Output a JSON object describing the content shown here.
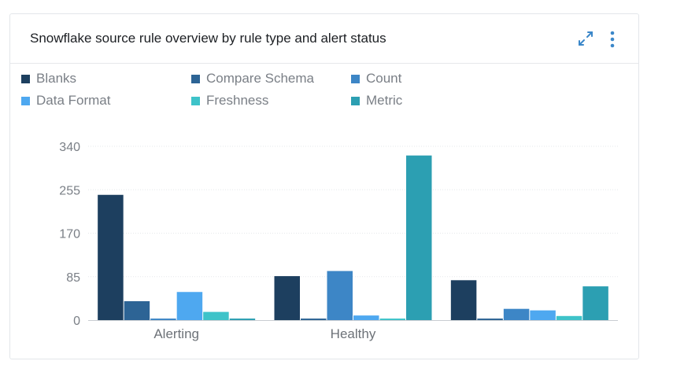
{
  "card": {
    "title": "Snowflake source rule overview by rule type and alert status"
  },
  "icons": {
    "expand": "expand-icon",
    "more": "more-vertical-icon",
    "accent": "#3b87c9"
  },
  "chart_data": {
    "type": "bar",
    "title": "Snowflake source rule overview by rule type and alert status",
    "xlabel": "",
    "ylabel": "",
    "categories": [
      "Alerting",
      "Healthy",
      ""
    ],
    "ylim": [
      0,
      340
    ],
    "yticks": [
      0,
      85,
      170,
      255,
      340
    ],
    "grid": true,
    "legend_position": "top-left",
    "series": [
      {
        "name": "Blanks",
        "color": "#1d3f5f",
        "values": [
          245,
          86,
          78
        ]
      },
      {
        "name": "Compare Schema",
        "color": "#2d6495",
        "values": [
          37,
          3,
          3
        ]
      },
      {
        "name": "Count",
        "color": "#3d86c6",
        "values": [
          3,
          96,
          22
        ]
      },
      {
        "name": "Data Format",
        "color": "#4ea8f0",
        "values": [
          55,
          9,
          19
        ]
      },
      {
        "name": "Freshness",
        "color": "#3ec3c9",
        "values": [
          16,
          3,
          8
        ]
      },
      {
        "name": "Metric",
        "color": "#2c9fb2",
        "values": [
          3,
          322,
          66
        ]
      }
    ]
  }
}
